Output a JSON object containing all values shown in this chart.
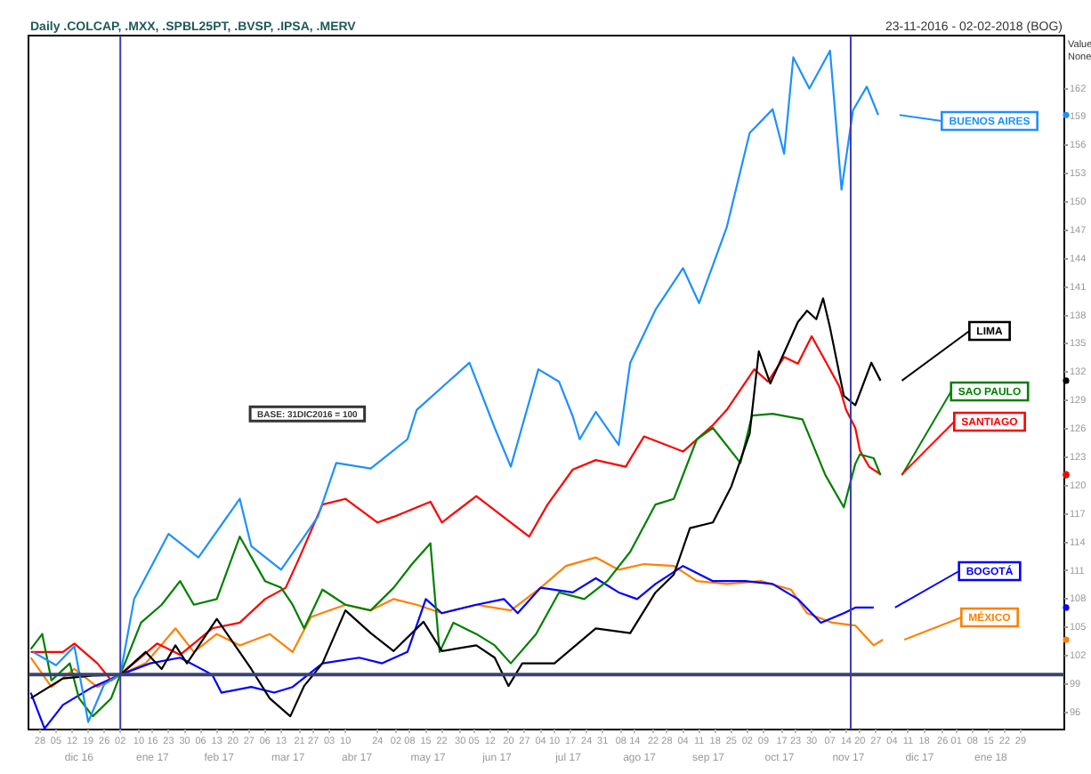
{
  "chart_data": {
    "type": "line",
    "title": "Daily .COLCAP, .MXX, .SPBL25PT, .BVSP, .IPSA, .MERV",
    "subtitle": "23-11-2016 - 02-02-2018 (BOG)",
    "ylabel": "Value None",
    "annotations": [
      "BASE: 31DIC2016 = 100"
    ],
    "marker": "none",
    "grid": false,
    "xlim": [
      "2016-11-23",
      "2018-02-17"
    ],
    "xticks": [
      {
        "value": "2016-11-28",
        "label": "28"
      },
      {
        "value": "2016-12-05",
        "label": "05"
      },
      {
        "value": "2016-12-12",
        "label": "12"
      },
      {
        "value": "2016-12-19",
        "label": "19"
      },
      {
        "value": "2016-12-26",
        "label": "26"
      },
      {
        "value": "2017-01-02",
        "label": "02"
      },
      {
        "value": "2017-01-10",
        "label": "10"
      },
      {
        "value": "2017-01-16",
        "label": "16"
      },
      {
        "value": "2017-01-23",
        "label": "23"
      },
      {
        "value": "2017-01-30",
        "label": "30"
      },
      {
        "value": "2017-02-06",
        "label": "06"
      },
      {
        "value": "2017-02-13",
        "label": "13"
      },
      {
        "value": "2017-02-20",
        "label": "20"
      },
      {
        "value": "2017-02-27",
        "label": "27"
      },
      {
        "value": "2017-03-06",
        "label": "06"
      },
      {
        "value": "2017-03-13",
        "label": "13"
      },
      {
        "value": "2017-03-21",
        "label": "21"
      },
      {
        "value": "2017-03-27",
        "label": "27"
      },
      {
        "value": "2017-04-03",
        "label": "03"
      },
      {
        "value": "2017-04-10",
        "label": "10"
      },
      {
        "value": "2017-04-24",
        "label": "24"
      },
      {
        "value": "2017-05-02",
        "label": "02"
      },
      {
        "value": "2017-05-08",
        "label": "08"
      },
      {
        "value": "2017-05-15",
        "label": "15"
      },
      {
        "value": "2017-05-22",
        "label": "22"
      },
      {
        "value": "2017-05-30",
        "label": "30"
      },
      {
        "value": "2017-06-05",
        "label": "05"
      },
      {
        "value": "2017-06-12",
        "label": "12"
      },
      {
        "value": "2017-06-20",
        "label": "20"
      },
      {
        "value": "2017-06-27",
        "label": "27"
      },
      {
        "value": "2017-07-04",
        "label": "04"
      },
      {
        "value": "2017-07-10",
        "label": "10"
      },
      {
        "value": "2017-07-17",
        "label": "17"
      },
      {
        "value": "2017-07-24",
        "label": "24"
      },
      {
        "value": "2017-07-31",
        "label": "31"
      },
      {
        "value": "2017-08-08",
        "label": "08"
      },
      {
        "value": "2017-08-14",
        "label": "14"
      },
      {
        "value": "2017-08-22",
        "label": "22"
      },
      {
        "value": "2017-08-28",
        "label": "28"
      },
      {
        "value": "2017-09-04",
        "label": "04"
      },
      {
        "value": "2017-09-11",
        "label": "11"
      },
      {
        "value": "2017-09-18",
        "label": "18"
      },
      {
        "value": "2017-09-25",
        "label": "25"
      },
      {
        "value": "2017-10-02",
        "label": "02"
      },
      {
        "value": "2017-10-09",
        "label": "09"
      },
      {
        "value": "2017-10-17",
        "label": "17"
      },
      {
        "value": "2017-10-23",
        "label": "23"
      },
      {
        "value": "2017-10-30",
        "label": "30"
      },
      {
        "value": "2017-11-07",
        "label": "07"
      },
      {
        "value": "2017-11-14",
        "label": "14"
      },
      {
        "value": "2017-11-20",
        "label": "20"
      },
      {
        "value": "2017-11-27",
        "label": "27"
      },
      {
        "value": "2017-12-04",
        "label": "04"
      },
      {
        "value": "2017-12-11",
        "label": "11"
      },
      {
        "value": "2017-12-18",
        "label": "18"
      },
      {
        "value": "2017-12-26",
        "label": "26"
      },
      {
        "value": "2018-01-01",
        "label": "01"
      },
      {
        "value": "2018-01-08",
        "label": "08"
      },
      {
        "value": "2018-01-15",
        "label": "15"
      },
      {
        "value": "2018-01-22",
        "label": "22"
      },
      {
        "value": "2018-01-29",
        "label": "29"
      }
    ],
    "x2lim": [
      "2016-11-23",
      "2018-02-17"
    ],
    "x2ticks": [
      {
        "value": "2016-12-15",
        "label": "dic 16"
      },
      {
        "value": "2017-01-16",
        "label": "ene 17"
      },
      {
        "value": "2017-02-14",
        "label": "feb 17"
      },
      {
        "value": "2017-03-16",
        "label": "mar 17"
      },
      {
        "value": "2017-04-15",
        "label": "abr 17"
      },
      {
        "value": "2017-05-16",
        "label": "may 17"
      },
      {
        "value": "2017-06-15",
        "label": "jun 17"
      },
      {
        "value": "2017-07-16",
        "label": "jul 17"
      },
      {
        "value": "2017-08-16",
        "label": "ago 17"
      },
      {
        "value": "2017-09-15",
        "label": "sep 17"
      },
      {
        "value": "2017-10-16",
        "label": "oct 17"
      },
      {
        "value": "2017-11-15",
        "label": "nov 17"
      },
      {
        "value": "2017-12-16",
        "label": "dic 17"
      },
      {
        "value": "2018-01-16",
        "label": "ene 18"
      }
    ],
    "ylim": [
      94.2,
      167.6
    ],
    "yticks": [
      96,
      99,
      102,
      105,
      108,
      111,
      114,
      117,
      120,
      123,
      126,
      129,
      132,
      135,
      138,
      141,
      144,
      147,
      150,
      153,
      156,
      159,
      162
    ],
    "ref_lines": [
      {
        "axis": "x",
        "value": "2017-01-02",
        "color": "#3c3cb4"
      },
      {
        "axis": "x",
        "value": "2017-11-16",
        "color": "#3c3cb4"
      },
      {
        "axis": "y",
        "value": 100,
        "color": "#3a4470"
      }
    ],
    "series": [
      {
        "name": "BUENOS AIRES",
        "color": "#1e90ff",
        "x": [
          "2016-11-25",
          "2016-12-05",
          "2016-12-13",
          "2016-12-19",
          "2016-12-26",
          "2017-01-02",
          "2017-01-08",
          "2017-01-23",
          "2017-02-05",
          "2017-02-23",
          "2017-02-28",
          "2017-03-13",
          "2017-03-29",
          "2017-04-06",
          "2017-04-21",
          "2017-05-07",
          "2017-05-11",
          "2017-06-03",
          "2017-06-14",
          "2017-06-21",
          "2017-07-03",
          "2017-07-12",
          "2017-07-18",
          "2017-07-21",
          "2017-07-28",
          "2017-08-07",
          "2017-08-12",
          "2017-08-23",
          "2017-09-04",
          "2017-09-11",
          "2017-09-23",
          "2017-10-03",
          "2017-10-13",
          "2017-10-18",
          "2017-10-22",
          "2017-10-29",
          "2017-11-07",
          "2017-11-12",
          "2017-11-17",
          "2017-11-23",
          "2017-11-28"
        ],
        "values": [
          102.4,
          101,
          103,
          95,
          99,
          100,
          108,
          114.9,
          112.4,
          118.6,
          113.6,
          111.1,
          116.7,
          122.4,
          121.8,
          124.9,
          128,
          133,
          126.1,
          122,
          132.3,
          131,
          127.3,
          124.9,
          127.8,
          124.3,
          133,
          138.6,
          143,
          139.3,
          147.3,
          157.3,
          159.8,
          155.1,
          165.3,
          162,
          166,
          151.3,
          159.7,
          162.2,
          159.2
        ]
      },
      {
        "name": "LIMA",
        "color": "#000000",
        "x": [
          "2016-11-24",
          "2016-12-08",
          "2016-12-21",
          "2017-01-02",
          "2017-01-13",
          "2017-01-20",
          "2017-01-26",
          "2017-01-31",
          "2017-02-13",
          "2017-02-28",
          "2017-03-08",
          "2017-03-17",
          "2017-03-23",
          "2017-03-31",
          "2017-04-10",
          "2017-04-21",
          "2017-05-01",
          "2017-05-14",
          "2017-05-22",
          "2017-06-06",
          "2017-06-14",
          "2017-06-20",
          "2017-06-26",
          "2017-07-10",
          "2017-07-28",
          "2017-08-12",
          "2017-08-23",
          "2017-08-31",
          "2017-09-07",
          "2017-09-17",
          "2017-09-25",
          "2017-10-03",
          "2017-10-07",
          "2017-10-12",
          "2017-10-24",
          "2017-10-28",
          "2017-11-01",
          "2017-11-04",
          "2017-11-07",
          "2017-11-13",
          "2017-11-18",
          "2017-11-25",
          "2017-11-29"
        ],
        "values": [
          97.5,
          99.6,
          99.9,
          100,
          102.4,
          100.6,
          103.1,
          101.2,
          105.9,
          100.6,
          97.5,
          95.6,
          98.8,
          101.2,
          106.8,
          104.4,
          102.5,
          105.6,
          102.5,
          103.1,
          101.8,
          98.8,
          101.2,
          101.2,
          104.9,
          104.4,
          108.7,
          110.6,
          115.5,
          116.1,
          119.9,
          125.5,
          134.2,
          130.8,
          137.3,
          138.5,
          137.6,
          139.8,
          136.7,
          129.5,
          128.5,
          133,
          131.1
        ]
      },
      {
        "name": "SAO PAULO",
        "color": "#008000",
        "x": [
          "2016-11-24",
          "2016-11-29",
          "2016-12-03",
          "2016-12-11",
          "2016-12-15",
          "2016-12-21",
          "2016-12-29",
          "2017-01-02",
          "2017-01-11",
          "2017-01-20",
          "2017-01-28",
          "2017-02-03",
          "2017-02-13",
          "2017-02-23",
          "2017-03-06",
          "2017-03-13",
          "2017-03-18",
          "2017-03-23",
          "2017-03-31",
          "2017-04-10",
          "2017-04-21",
          "2017-05-01",
          "2017-05-09",
          "2017-05-17",
          "2017-05-21",
          "2017-05-27",
          "2017-06-06",
          "2017-06-14",
          "2017-06-21",
          "2017-07-02",
          "2017-07-12",
          "2017-07-23",
          "2017-08-02",
          "2017-08-12",
          "2017-08-23",
          "2017-08-31",
          "2017-09-10",
          "2017-09-17",
          "2017-09-29",
          "2017-10-04",
          "2017-10-13",
          "2017-10-26",
          "2017-11-05",
          "2017-11-13",
          "2017-11-18",
          "2017-11-20",
          "2017-11-26",
          "2017-11-29"
        ],
        "values": [
          102.7,
          104.3,
          99.4,
          101.2,
          97.5,
          95.6,
          97.5,
          100,
          105.5,
          107.4,
          109.9,
          107.4,
          108,
          114.6,
          109.9,
          109.2,
          107.4,
          104.9,
          109,
          107.4,
          106.8,
          109.2,
          111.7,
          113.9,
          102.4,
          105.5,
          104.3,
          103.1,
          101.2,
          104.3,
          108.7,
          108,
          109.9,
          113,
          118,
          118.6,
          124.9,
          126.1,
          122.4,
          127.4,
          127.6,
          127,
          121.1,
          117.7,
          122.3,
          123.3,
          122.9,
          121.1
        ]
      },
      {
        "name": "SANTIAGO",
        "color": "#ff0000",
        "x": [
          "2016-11-24",
          "2016-12-08",
          "2016-12-13",
          "2016-12-23",
          "2016-12-29",
          "2017-01-02",
          "2017-01-18",
          "2017-01-28",
          "2017-02-11",
          "2017-02-23",
          "2017-03-06",
          "2017-03-15",
          "2017-03-21",
          "2017-03-31",
          "2017-04-10",
          "2017-04-24",
          "2017-05-01",
          "2017-05-17",
          "2017-05-22",
          "2017-06-06",
          "2017-06-21",
          "2017-06-29",
          "2017-07-07",
          "2017-07-18",
          "2017-07-28",
          "2017-08-10",
          "2017-08-18",
          "2017-09-04",
          "2017-09-17",
          "2017-09-23",
          "2017-10-05",
          "2017-10-11",
          "2017-10-18",
          "2017-10-24",
          "2017-10-30",
          "2017-11-04",
          "2017-11-11",
          "2017-11-14",
          "2017-11-18",
          "2017-11-20",
          "2017-11-24",
          "2017-11-29"
        ],
        "values": [
          102.4,
          102.4,
          103.3,
          101.2,
          99.4,
          100,
          103.3,
          102.1,
          104.9,
          105.5,
          108,
          109.2,
          112.4,
          118,
          118.6,
          116.1,
          116.7,
          118.3,
          116.1,
          118.9,
          116.1,
          114.6,
          118,
          121.7,
          122.7,
          122,
          125.2,
          123.6,
          126.4,
          128,
          132.3,
          131,
          133.6,
          132.9,
          135.8,
          133.6,
          130.5,
          128,
          126.1,
          123.7,
          122,
          121.2
        ]
      },
      {
        "name": "BOGOTÁ",
        "color": "#0000ff",
        "x": [
          "2016-11-24",
          "2016-11-30",
          "2016-12-08",
          "2016-12-21",
          "2017-01-02",
          "2017-01-15",
          "2017-01-28",
          "2017-02-11",
          "2017-02-15",
          "2017-02-28",
          "2017-03-10",
          "2017-03-18",
          "2017-03-31",
          "2017-04-16",
          "2017-04-26",
          "2017-05-07",
          "2017-05-15",
          "2017-05-22",
          "2017-06-06",
          "2017-06-18",
          "2017-06-24",
          "2017-07-04",
          "2017-07-18",
          "2017-07-28",
          "2017-08-07",
          "2017-08-15",
          "2017-08-23",
          "2017-09-04",
          "2017-09-17",
          "2017-10-01",
          "2017-10-13",
          "2017-10-24",
          "2017-11-03",
          "2017-11-13",
          "2017-11-18",
          "2017-11-26"
        ],
        "values": [
          98.1,
          94.3,
          96.8,
          98.7,
          100,
          101.2,
          101.8,
          100,
          98.1,
          98.7,
          98.1,
          98.7,
          101.2,
          101.8,
          101.2,
          102.4,
          108,
          106.5,
          107.4,
          108,
          106.5,
          109.2,
          108.7,
          110.2,
          108.7,
          108,
          109.6,
          111.5,
          109.9,
          109.9,
          109.6,
          108,
          105.5,
          106.5,
          107.1,
          107.1
        ]
      },
      {
        "name": "MÉXICO",
        "color": "#ff8000",
        "x": [
          "2016-11-24",
          "2016-12-03",
          "2016-12-13",
          "2016-12-23",
          "2017-01-02",
          "2017-01-13",
          "2017-01-26",
          "2017-02-03",
          "2017-02-13",
          "2017-02-23",
          "2017-03-08",
          "2017-03-18",
          "2017-03-26",
          "2017-04-10",
          "2017-04-21",
          "2017-05-01",
          "2017-05-11",
          "2017-05-22",
          "2017-06-06",
          "2017-06-21",
          "2017-07-04",
          "2017-07-15",
          "2017-07-28",
          "2017-08-07",
          "2017-08-18",
          "2017-08-31",
          "2017-09-10",
          "2017-09-23",
          "2017-10-08",
          "2017-10-21",
          "2017-10-28",
          "2017-11-08",
          "2017-11-18",
          "2017-11-26",
          "2017-11-30"
        ],
        "values": [
          101.8,
          98.7,
          100.6,
          98.7,
          100,
          101.2,
          104.9,
          102.4,
          104.3,
          103.1,
          104.3,
          102.4,
          106.1,
          107.4,
          106.8,
          108,
          107.4,
          106.5,
          107.4,
          106.8,
          109.2,
          111.5,
          112.4,
          111.1,
          111.7,
          111.5,
          109.9,
          109.6,
          109.9,
          109,
          106.5,
          105.5,
          105.2,
          103.1,
          103.7
        ]
      }
    ]
  }
}
